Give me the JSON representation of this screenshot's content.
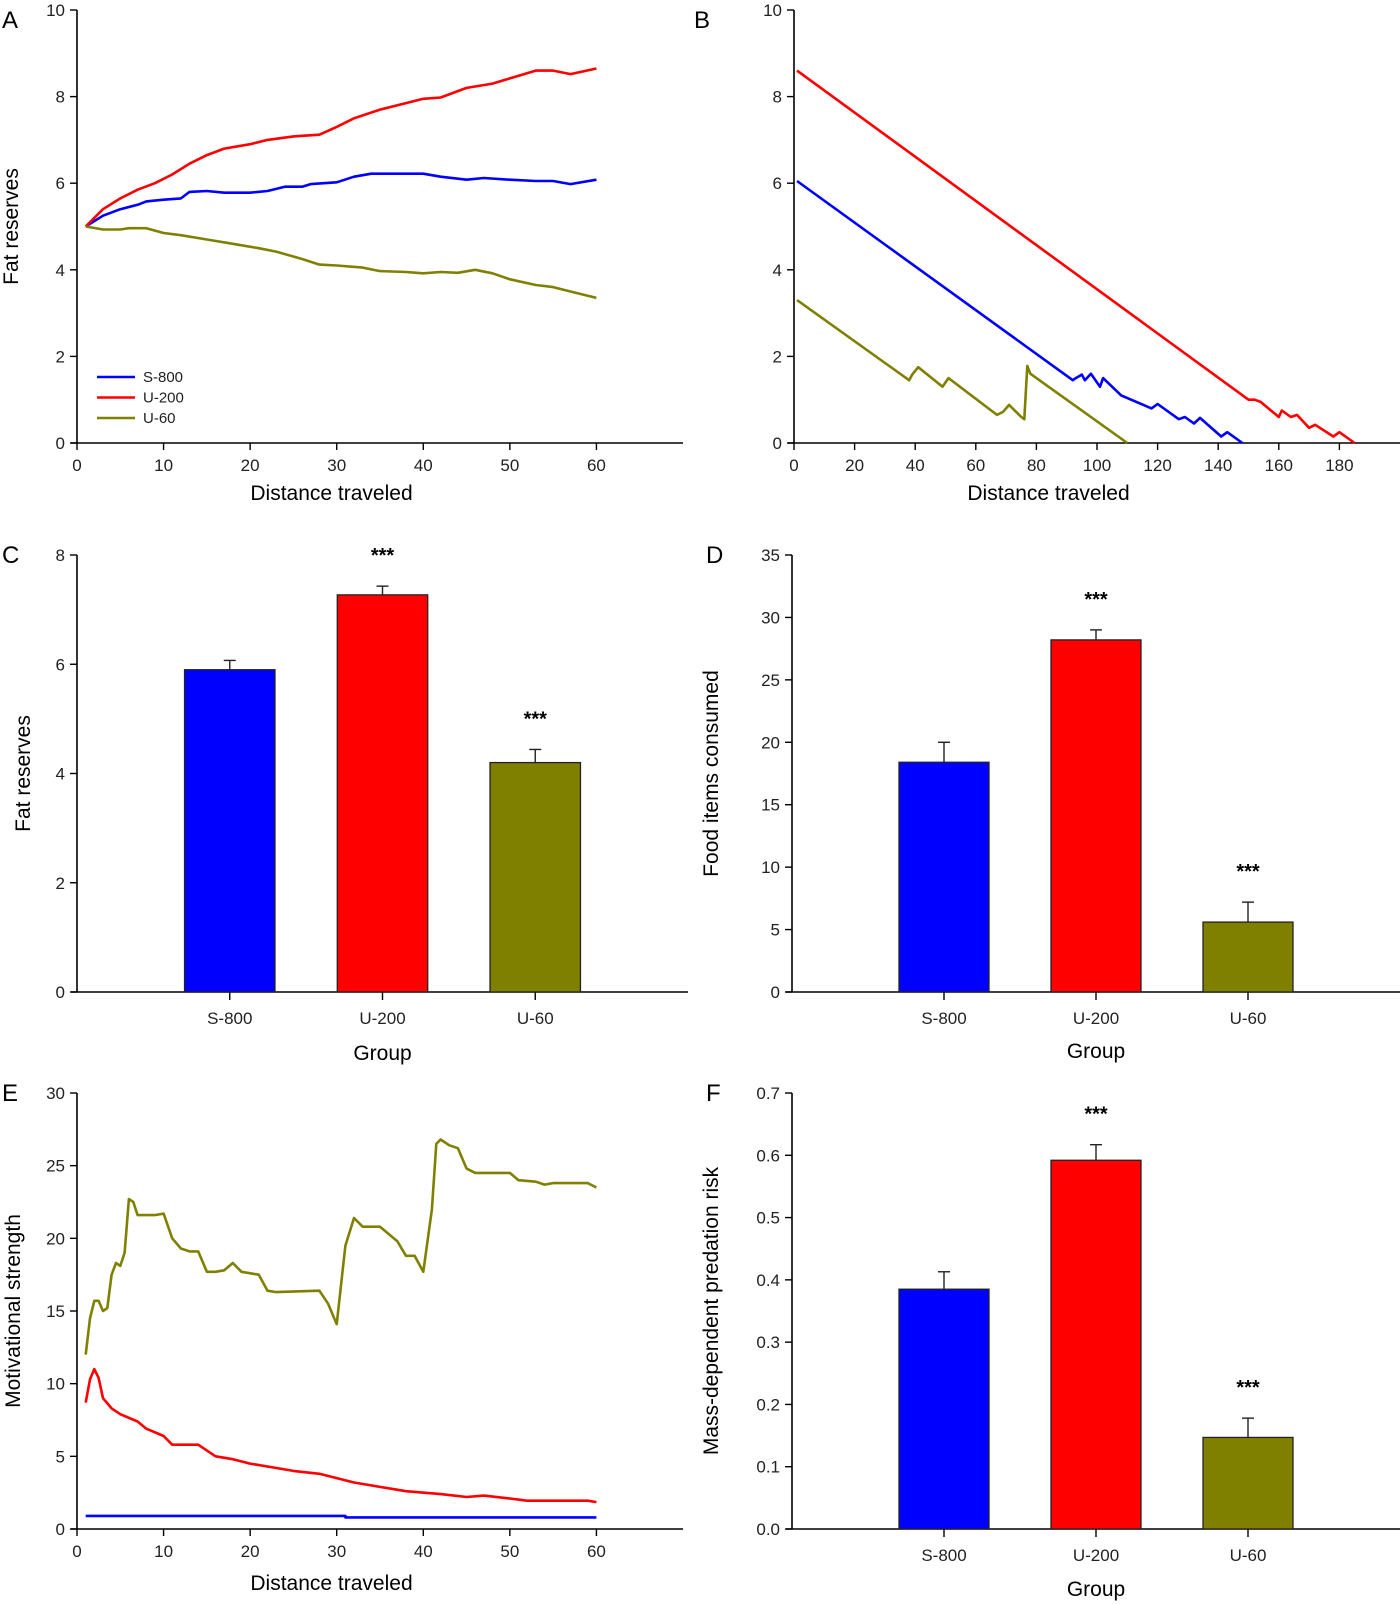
{
  "colors": {
    "S-800": "#0000ff",
    "U-200": "#ff0000",
    "U-60": "#808000",
    "axis": "#000000"
  },
  "chart_data": [
    {
      "panel": "A",
      "type": "line",
      "title": "",
      "xlabel": "Distance traveled",
      "ylabel": "Fat reserves",
      "xlim": [
        0,
        70
      ],
      "ylim": [
        0,
        10
      ],
      "xticks": [
        0,
        10,
        20,
        30,
        40,
        50,
        60
      ],
      "yticks": [
        0,
        2,
        4,
        6,
        8,
        10
      ],
      "legend": {
        "placement": "bottom-left",
        "entries": [
          "S-800",
          "U-200",
          "U-60"
        ]
      },
      "series": [
        {
          "name": "S-800",
          "x": [
            1,
            3,
            5,
            7,
            8,
            10,
            12,
            13,
            15,
            17,
            20,
            22,
            24,
            26,
            27,
            30,
            32,
            34,
            40,
            42,
            45,
            47,
            50,
            53,
            55,
            57,
            60
          ],
          "y": [
            5.0,
            5.25,
            5.4,
            5.5,
            5.58,
            5.62,
            5.65,
            5.8,
            5.82,
            5.78,
            5.78,
            5.82,
            5.92,
            5.92,
            5.98,
            6.02,
            6.15,
            6.22,
            6.22,
            6.15,
            6.08,
            6.12,
            6.08,
            6.05,
            6.05,
            5.98,
            6.08
          ]
        },
        {
          "name": "U-200",
          "x": [
            1,
            3,
            5,
            7,
            9,
            11,
            13,
            15,
            17,
            20,
            22,
            25,
            28,
            30,
            32,
            35,
            38,
            40,
            42,
            45,
            48,
            50,
            53,
            55,
            57,
            60
          ],
          "y": [
            5.0,
            5.4,
            5.65,
            5.85,
            6.0,
            6.2,
            6.45,
            6.65,
            6.8,
            6.9,
            7.0,
            7.08,
            7.12,
            7.3,
            7.5,
            7.7,
            7.85,
            7.95,
            7.98,
            8.2,
            8.3,
            8.42,
            8.6,
            8.6,
            8.52,
            8.65
          ]
        },
        {
          "name": "U-60",
          "x": [
            1,
            3,
            5,
            6,
            8,
            10,
            12,
            15,
            18,
            21,
            23,
            26,
            28,
            30,
            33,
            35,
            38,
            40,
            42,
            44,
            46,
            48,
            50,
            53,
            55,
            57,
            60
          ],
          "y": [
            5.0,
            4.93,
            4.93,
            4.96,
            4.96,
            4.85,
            4.8,
            4.7,
            4.6,
            4.5,
            4.42,
            4.25,
            4.12,
            4.1,
            4.05,
            3.97,
            3.95,
            3.92,
            3.95,
            3.93,
            4.0,
            3.92,
            3.78,
            3.65,
            3.6,
            3.5,
            3.35
          ]
        }
      ]
    },
    {
      "panel": "B",
      "type": "line",
      "title": "",
      "xlabel": "Distance traveled",
      "ylabel": "",
      "xlim": [
        0,
        200
      ],
      "ylim": [
        0,
        10
      ],
      "xticks": [
        0,
        20,
        40,
        60,
        80,
        100,
        120,
        140,
        160,
        180
      ],
      "yticks": [
        0,
        2,
        4,
        6,
        8,
        10
      ],
      "series": [
        {
          "name": "U-200",
          "x": [
            1,
            150,
            152,
            154,
            160,
            161,
            164,
            166,
            170,
            172,
            178,
            180,
            185
          ],
          "y": [
            8.6,
            1.0,
            1.0,
            0.95,
            0.6,
            0.75,
            0.6,
            0.65,
            0.35,
            0.42,
            0.15,
            0.25,
            0.0
          ]
        },
        {
          "name": "S-800",
          "x": [
            1,
            92,
            93,
            95,
            96,
            98,
            101,
            102,
            108,
            118,
            120,
            127,
            129,
            132,
            134,
            141,
            143,
            148
          ],
          "y": [
            6.05,
            1.45,
            1.5,
            1.58,
            1.45,
            1.6,
            1.3,
            1.5,
            1.1,
            0.8,
            0.9,
            0.55,
            0.6,
            0.45,
            0.58,
            0.15,
            0.25,
            0.0
          ]
        },
        {
          "name": "U-60",
          "x": [
            1,
            38,
            39,
            41,
            49,
            51,
            67,
            69,
            71,
            75,
            76,
            77,
            78,
            110
          ],
          "y": [
            3.3,
            1.45,
            1.58,
            1.75,
            1.3,
            1.5,
            0.65,
            0.72,
            0.88,
            0.6,
            0.55,
            1.78,
            1.6,
            0.0
          ]
        }
      ]
    },
    {
      "panel": "C",
      "type": "bar",
      "title": "",
      "xlabel": "Group",
      "ylabel": "Fat reserves",
      "ylim": [
        0,
        8
      ],
      "yticks": [
        0,
        2,
        4,
        6,
        8
      ],
      "categories": [
        "S-800",
        "U-200",
        "U-60"
      ],
      "values": [
        5.9,
        7.27,
        4.2
      ],
      "errors": [
        0.17,
        0.16,
        0.24
      ],
      "annotations": [
        "",
        "***",
        "***"
      ]
    },
    {
      "panel": "D",
      "type": "bar",
      "title": "",
      "xlabel": "Group",
      "ylabel": "Food items consumed",
      "ylim": [
        0,
        35
      ],
      "yticks": [
        0,
        5,
        10,
        15,
        20,
        25,
        30,
        35
      ],
      "categories": [
        "S-800",
        "U-200",
        "U-60"
      ],
      "values": [
        18.4,
        28.2,
        5.6
      ],
      "errors": [
        1.6,
        0.8,
        1.6
      ],
      "annotations": [
        "",
        "***",
        "***"
      ]
    },
    {
      "panel": "E",
      "type": "line",
      "title": "",
      "xlabel": "Distance traveled",
      "ylabel": "Motivational strength",
      "xlim": [
        0,
        70
      ],
      "ylim": [
        0,
        30
      ],
      "xticks": [
        0,
        10,
        20,
        30,
        40,
        50,
        60
      ],
      "yticks": [
        0,
        5,
        10,
        15,
        20,
        25,
        30
      ],
      "series": [
        {
          "name": "U-60",
          "x": [
            1,
            1.5,
            2,
            2.5,
            3,
            3.5,
            4,
            4.5,
            5,
            5.5,
            6,
            6.5,
            7,
            9,
            10,
            11,
            12,
            13,
            14,
            15,
            16,
            17,
            18,
            19,
            21,
            22,
            23,
            28,
            29,
            30,
            31,
            32,
            33,
            35,
            37,
            38,
            39,
            40,
            41,
            41.5,
            42,
            43,
            44,
            45,
            46,
            47,
            50,
            51,
            53,
            54,
            55,
            59,
            60
          ],
          "y": [
            12,
            14.5,
            15.7,
            15.7,
            15.0,
            15.2,
            17.5,
            18.3,
            18.1,
            19,
            22.7,
            22.5,
            21.6,
            21.6,
            21.7,
            20,
            19.3,
            19.1,
            19.1,
            17.7,
            17.7,
            17.8,
            18.3,
            17.7,
            17.5,
            16.4,
            16.3,
            16.4,
            15.5,
            14.1,
            19.5,
            21.4,
            20.8,
            20.8,
            19.8,
            18.8,
            18.8,
            17.7,
            22,
            26.5,
            26.8,
            26.4,
            26.2,
            24.8,
            24.5,
            24.5,
            24.5,
            24.0,
            23.9,
            23.7,
            23.8,
            23.8,
            23.5
          ]
        },
        {
          "name": "U-200",
          "x": [
            1,
            1.5,
            2,
            2.5,
            3,
            4,
            5,
            7,
            8,
            10,
            11,
            14,
            16,
            18,
            20,
            22,
            25,
            28,
            30,
            32,
            35,
            38,
            42,
            45,
            47,
            50,
            52,
            59,
            60
          ],
          "y": [
            8.7,
            10.3,
            11.0,
            10.4,
            9.0,
            8.3,
            7.9,
            7.4,
            6.9,
            6.4,
            5.8,
            5.8,
            5.0,
            4.8,
            4.5,
            4.3,
            4.0,
            3.8,
            3.5,
            3.2,
            2.9,
            2.6,
            2.4,
            2.2,
            2.3,
            2.1,
            1.95,
            1.95,
            1.85
          ]
        },
        {
          "name": "S-800",
          "x": [
            1,
            31,
            31,
            60
          ],
          "y": [
            0.9,
            0.9,
            0.8,
            0.8
          ]
        }
      ]
    },
    {
      "panel": "F",
      "type": "bar",
      "title": "",
      "xlabel": "Group",
      "ylabel": "Mass-dependent predation risk",
      "ylim": [
        0,
        0.7
      ],
      "yticks": [
        "0.0",
        "0.1",
        "0.2",
        "0.3",
        "0.4",
        "0.5",
        "0.6",
        "0.7"
      ],
      "categories": [
        "S-800",
        "U-200",
        "U-60"
      ],
      "values": [
        0.385,
        0.592,
        0.147
      ],
      "errors": [
        0.028,
        0.025,
        0.031
      ],
      "annotations": [
        "",
        "***",
        "***"
      ]
    }
  ]
}
